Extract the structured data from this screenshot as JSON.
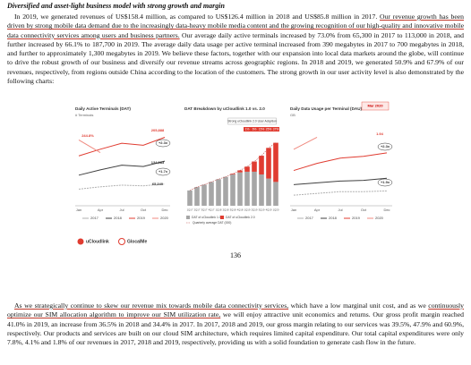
{
  "heading": "Diversified and asset-light business model with strong growth and margin",
  "paragraph_1": [
    {
      "text": "In 2019, we generated revenues of US$158.4 million, as compared to US$126.4 million in 2018 and US$85.8 million in 2017. ",
      "underline": false
    },
    {
      "text": "Our revenue growth has been driven by strong mobile data demand due to the increasingly data-heavy mobile media content and the growing recognition of our high-quality and innovative mobile data connectivity services among users and business partners.",
      "underline": true
    },
    {
      "text": " Our average daily active terminals increased by 73.0% from 65,300 in 2017 to 113,000 in 2018, and further increased by 66.1% to 187,700 in 2019. The average daily data usage per active terminal increased from 390 megabytes in 2017 to 700 megabytes in 2018, and further to approximately 1,300 megabytes in 2019. We believe these factors, together with our expansion into local data markets around the globe, will continue to drive the robust growth of our business and diversify our revenue streams across geographic regions. In 2018 and 2019, we generated 50.9% and 67.9% of our revenues, respectively, from regions outside China according to the location of the customers. The strong growth in our user activity level is also demonstrated by the following charts:",
      "underline": false
    }
  ],
  "figures": [
    {
      "type": "line",
      "title": "Daily Active Terminals (DAT)",
      "subtitle": "# Terminals",
      "categories": [
        "Jan",
        "Apr",
        "Jul",
        "Oct",
        "Dec"
      ],
      "series": [
        {
          "name": "2017",
          "color": "#b0b0b0",
          "values": [
            50000,
            57000,
            62000,
            60000,
            65340
          ]
        },
        {
          "name": "2018",
          "color": "#404040",
          "values": [
            92000,
            108000,
            122000,
            118000,
            134083
          ]
        },
        {
          "name": "2019",
          "color": "#e03c31",
          "values": [
            150000,
            170000,
            188000,
            182000,
            205888
          ]
        },
        {
          "name": "2020",
          "color": "#f08a80",
          "values": [
            198000,
            160000,
            null,
            null,
            null
          ]
        }
      ],
      "annotations": [
        "244.8%",
        "205,888",
        "+2.3x",
        "134,083",
        "+1.7x",
        "65,340"
      ]
    },
    {
      "type": "stacked_bar",
      "title": "DAT Breakdown by uCloudlink 1.0 vs. 2.0",
      "callout": "Strong uCloudlink 2.0 User Adoption",
      "categories": [
        "1Q17",
        "2Q17",
        "3Q17",
        "4Q17",
        "1Q18",
        "2Q18",
        "3Q18",
        "4Q18",
        "1Q19",
        "2Q19",
        "3Q19",
        "4Q19",
        "1Q20"
      ],
      "series": [
        {
          "name": "DAT of uCloudlink 1.0",
          "color": "#a6a6a6",
          "values": [
            45,
            55,
            62,
            70,
            78,
            85,
            92,
            98,
            100,
            100,
            92,
            80,
            70
          ]
        },
        {
          "name": "DAT of uCloudlink 2.0",
          "color": "#e03c31",
          "values": [
            0,
            0,
            0,
            0,
            0,
            0,
            2,
            6,
            15,
            30,
            55,
            90,
            115
          ]
        }
      ],
      "line": {
        "name": "Quarterly average DAT (000)",
        "color": "#c0504d",
        "values": [
          45,
          55,
          62,
          70,
          78,
          85,
          94,
          104,
          115,
          130,
          147,
          170,
          185
        ]
      },
      "share_labels": [
        "1%",
        "6%",
        "15%",
        "25%",
        "37%"
      ]
    },
    {
      "type": "line",
      "title": "Daily Data Usage per Terminal (DAU)",
      "subtitle": "GB",
      "callout": "Mar 2020",
      "categories": [
        "Jan",
        "Apr",
        "Jul",
        "Oct",
        "Dec"
      ],
      "series": [
        {
          "name": "2017",
          "color": "#b0b0b0",
          "values": [
            0.3,
            0.35,
            0.4,
            0.4,
            0.42
          ]
        },
        {
          "name": "2018",
          "color": "#404040",
          "values": [
            0.6,
            0.65,
            0.7,
            0.72,
            0.78
          ]
        },
        {
          "name": "2019",
          "color": "#e03c31",
          "values": [
            1.0,
            1.2,
            1.35,
            1.4,
            1.5
          ]
        },
        {
          "name": "2020",
          "color": "#f08a80",
          "values": [
            1.6,
            1.94,
            null,
            null,
            null
          ]
        }
      ],
      "annotations": [
        "1.94",
        "+2.3x",
        "+1.9x"
      ]
    }
  ],
  "logos": [
    "uCloudlink",
    "GlocalMe"
  ],
  "page_number": "136",
  "paragraph_2": [
    {
      "text": "As we strategically continue to skew our revenue mix towards mobile data connectivity services,",
      "underline": true
    },
    {
      "text": " which have a low marginal unit cost, and as we ",
      "underline": false
    },
    {
      "text": "continuously optimize our SIM allocation algorithm to improve our SIM utilization rate,",
      "underline": true
    },
    {
      "text": " we will enjoy attractive unit economics and returns. Our gross profit margin reached 41.0% in 2019, an increase from 36.5% in 2018 and 34.4% in 2017. In 2017, 2018 and 2019, our gross margin relating to our services was 39.5%, 47.9% and 60.9%, respectively. Our products and services are built on our cloud SIM architecture, which requires limited capital expenditure. Our total capital expenditures were only 7.8%, 4.1% and 1.8% of our revenues in 2017, 2018 and 2019, respectively, providing us with a solid foundation to generate cash flow in the future.",
      "underline": false
    }
  ]
}
